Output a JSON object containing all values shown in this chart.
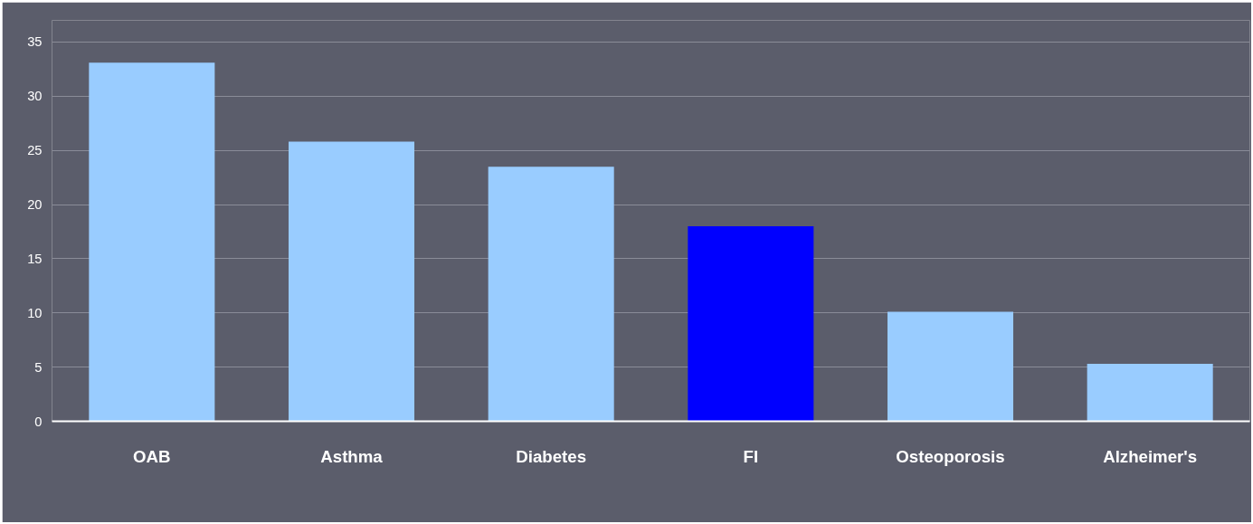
{
  "chart_data": {
    "type": "bar",
    "categories": [
      "OAB",
      "Asthma",
      "Diabetes",
      "FI",
      "Osteoporosis",
      "Alzheimer's"
    ],
    "values": [
      33.1,
      25.8,
      23.5,
      18,
      10.1,
      5.3
    ],
    "colors": [
      "#99ccff",
      "#99ccff",
      "#99ccff",
      "#0000ff",
      "#99ccff",
      "#99ccff"
    ],
    "ylim": [
      0,
      37
    ],
    "yticks": [
      0,
      5,
      10,
      15,
      20,
      25,
      30,
      35
    ],
    "grid": "y"
  }
}
